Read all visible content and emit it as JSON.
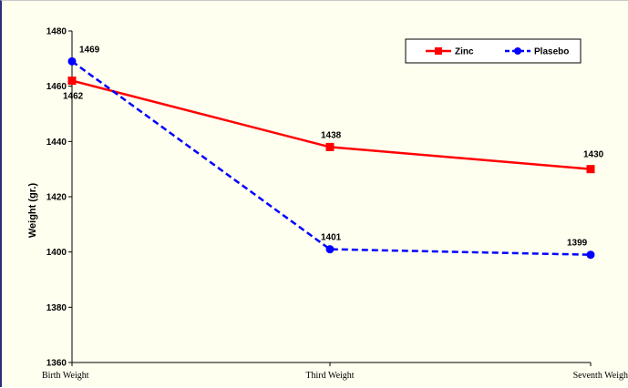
{
  "chart_data": {
    "type": "line",
    "title": "",
    "xlabel": "",
    "ylabel": "Weight (gr.)",
    "categories": [
      "Birth Weight",
      "Third Weight",
      "Seventh Weigh"
    ],
    "ylim": [
      1360,
      1480
    ],
    "yticks": [
      1360,
      1380,
      1400,
      1420,
      1440,
      1460,
      1480
    ],
    "grid": false,
    "legend_position": "top-right",
    "series": [
      {
        "name": "Zinc",
        "values": [
          1462,
          1438,
          1430
        ],
        "labels": [
          "1462",
          "1438",
          "1430"
        ],
        "color": "#ff0000",
        "line_style": "solid",
        "marker": "square"
      },
      {
        "name": "Plasebo",
        "values": [
          1469,
          1401,
          1399
        ],
        "labels": [
          "1469",
          "1401",
          "1399"
        ],
        "color": "#0000ff",
        "line_style": "dashed",
        "marker": "circle"
      }
    ]
  }
}
